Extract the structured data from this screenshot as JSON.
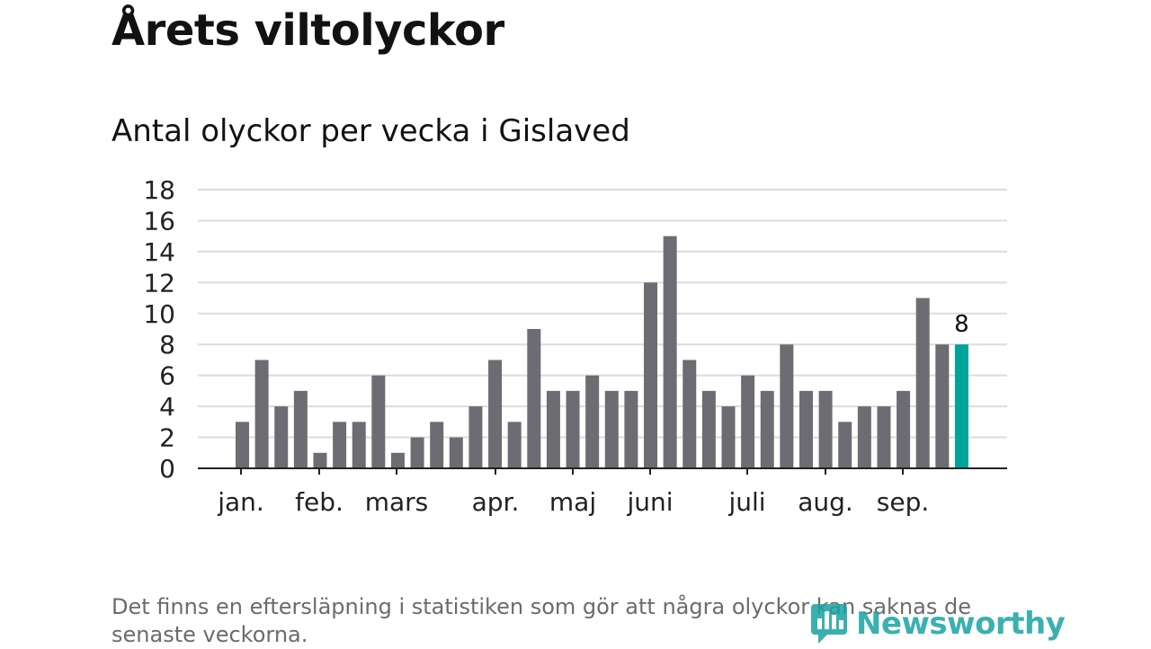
{
  "title": "Årets viltolyckor",
  "subtitle": "Antal olyckor per vecka i Gislaved",
  "footnote": "Det finns en eftersläpning i statistiken som gör att några olyckor kan saknas de senaste veckorna.",
  "brand": "Newsworthy",
  "colors": {
    "bar": "#6d6c72",
    "highlight": "#00a39a",
    "grid": "#dcdcdc",
    "axis": "#222222",
    "brand": "#1aa3a3"
  },
  "chart_data": {
    "type": "bar",
    "title": "Antal olyckor per vecka i Gislaved",
    "xlabel": "",
    "ylabel": "",
    "ylim": [
      0,
      18
    ],
    "yticks": [
      0,
      2,
      4,
      6,
      8,
      10,
      12,
      14,
      16,
      18
    ],
    "grid": true,
    "month_labels": [
      "jan.",
      "feb.",
      "mars",
      "apr.",
      "maj",
      "juni",
      "juli",
      "aug.",
      "sep."
    ],
    "values": [
      3,
      7,
      4,
      5,
      1,
      3,
      3,
      6,
      1,
      2,
      3,
      2,
      4,
      7,
      3,
      9,
      5,
      5,
      6,
      5,
      5,
      12,
      15,
      7,
      5,
      4,
      6,
      5,
      8,
      5,
      5,
      3,
      4,
      4,
      5,
      11,
      8,
      8
    ],
    "highlight_last": true,
    "annotation": "8"
  }
}
